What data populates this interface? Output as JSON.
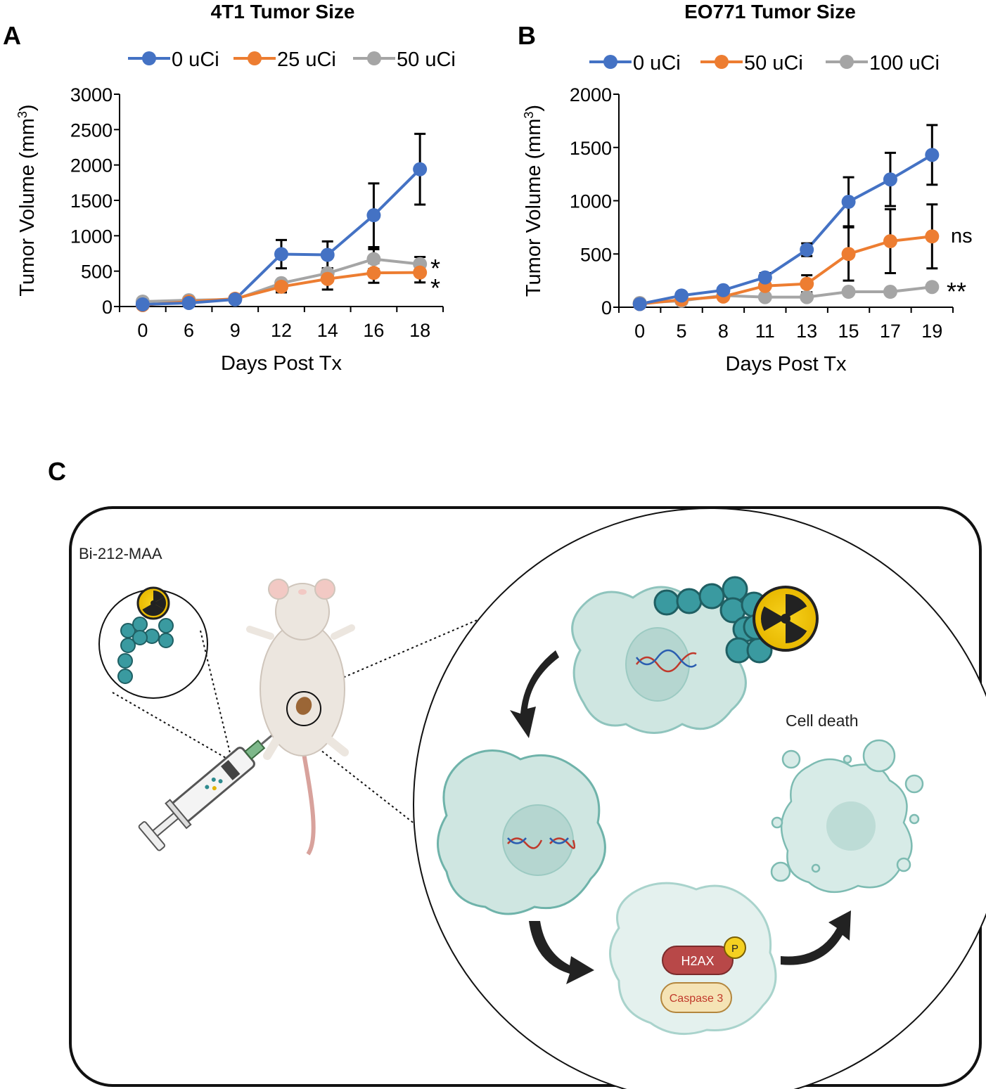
{
  "panels": {
    "a_letter": "A",
    "b_letter": "B",
    "c_letter": "C"
  },
  "chart_data": [
    {
      "type": "line",
      "title": "4T1 Tumor Size",
      "xlabel": "Days Post Tx",
      "ylabel": "Tumor Volume (mm",
      "ylabel_sup": "3",
      "ylabel_close": ")",
      "categories": [
        "0",
        "6",
        "9",
        "12",
        "14",
        "16",
        "18"
      ],
      "ylim": [
        0,
        3000
      ],
      "yticks": [
        0,
        500,
        1000,
        1500,
        2000,
        2500,
        3000
      ],
      "series": [
        {
          "name": "0 uCi",
          "color": "#4472C4",
          "values": [
            30,
            50,
            100,
            740,
            730,
            1290,
            1940
          ],
          "errors": [
            0,
            0,
            0,
            200,
            190,
            450,
            500
          ]
        },
        {
          "name": "25 uCi",
          "color": "#ED7D31",
          "values": [
            20,
            70,
            110,
            280,
            390,
            475,
            480
          ],
          "errors": [
            0,
            0,
            0,
            80,
            150,
            140,
            140
          ]
        },
        {
          "name": "50 uCi",
          "color": "#A5A5A5",
          "values": [
            70,
            90,
            100,
            330,
            470,
            670,
            600
          ],
          "errors": [
            0,
            0,
            0,
            0,
            0,
            140,
            100
          ]
        }
      ],
      "annotations": [
        "*",
        "*"
      ]
    },
    {
      "type": "line",
      "title": "EO771 Tumor Size",
      "xlabel": "Days Post Tx",
      "ylabel": "Tumor Volume (mm",
      "ylabel_sup": "3",
      "ylabel_close": ")",
      "categories": [
        "0",
        "5",
        "8",
        "11",
        "13",
        "15",
        "17",
        "19"
      ],
      "ylim": [
        0,
        2000
      ],
      "yticks": [
        0,
        500,
        1000,
        1500,
        2000
      ],
      "series": [
        {
          "name": "0 uCi",
          "color": "#4472C4",
          "values": [
            30,
            110,
            160,
            280,
            540,
            990,
            1200,
            1430
          ],
          "errors": [
            0,
            0,
            0,
            40,
            60,
            230,
            250,
            280
          ]
        },
        {
          "name": "50 uCi",
          "color": "#ED7D31",
          "values": [
            30,
            70,
            100,
            200,
            220,
            500,
            620,
            665
          ],
          "errors": [
            0,
            0,
            0,
            0,
            80,
            250,
            300,
            300
          ]
        },
        {
          "name": "100 uCi",
          "color": "#A5A5A5",
          "values": [
            40,
            60,
            110,
            95,
            95,
            145,
            145,
            190
          ],
          "errors": [
            0,
            0,
            0,
            0,
            0,
            0,
            0,
            0
          ]
        }
      ],
      "annotations": [
        "ns",
        "**"
      ]
    }
  ],
  "diagram": {
    "agent_label": "Bi-212-MAA",
    "death_label": "Cell death",
    "h2ax_label": "H2AX",
    "phospho_label": "P",
    "caspase_label": "Caspase 3"
  }
}
